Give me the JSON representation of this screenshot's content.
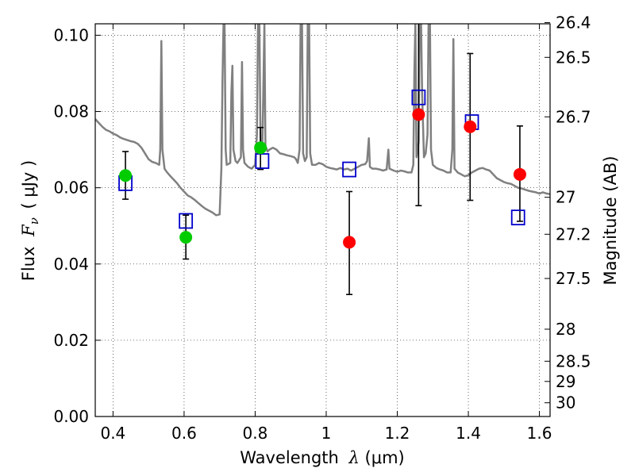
{
  "chart_data": {
    "type": "scatter",
    "title": "",
    "xlabel_prefix": "Wavelength",
    "xlabel_symbol": "λ",
    "xlabel_unit": "(μm)",
    "ylabel_prefix": "Flux",
    "ylabel_symbol": "F",
    "ylabel_sub": "ν",
    "ylabel_unit": "( μJy )",
    "y2label": "Magnitude (AB)",
    "xlim": [
      0.35,
      1.63
    ],
    "ylim": [
      0.0,
      0.103
    ],
    "grid": true,
    "legend": "none",
    "xticks": [
      0.4,
      0.6,
      0.8,
      1.0,
      1.2,
      1.4,
      1.6
    ],
    "xtick_labels": [
      "0.4",
      "0.6",
      "0.8",
      "1",
      "1.2",
      "1.4",
      "1.6"
    ],
    "yticks": [
      0.0,
      0.02,
      0.04,
      0.06,
      0.08,
      0.1
    ],
    "ytick_labels": [
      "0.00",
      "0.02",
      "0.04",
      "0.06",
      "0.08",
      "0.10"
    ],
    "mag_ticks": [
      {
        "flux": 0.1033,
        "label": "26.4"
      },
      {
        "flux": 0.0942,
        "label": "26.5"
      },
      {
        "flux": 0.0786,
        "label": "26.7"
      },
      {
        "flux": 0.0575,
        "label": "27"
      },
      {
        "flux": 0.0478,
        "label": "27.2"
      },
      {
        "flux": 0.0362,
        "label": "27.5"
      },
      {
        "flux": 0.0229,
        "label": "28"
      },
      {
        "flux": 0.0145,
        "label": "28.5"
      },
      {
        "flux": 0.0092,
        "label": "29"
      },
      {
        "flux": 0.0036,
        "label": "30"
      }
    ],
    "spectrum": {
      "color": "#808080",
      "points": [
        [
          0.35,
          0.078
        ],
        [
          0.36,
          0.077
        ],
        [
          0.37,
          0.076
        ],
        [
          0.38,
          0.0752
        ],
        [
          0.39,
          0.0748
        ],
        [
          0.4,
          0.0742
        ],
        [
          0.41,
          0.0738
        ],
        [
          0.42,
          0.0732
        ],
        [
          0.43,
          0.0728
        ],
        [
          0.44,
          0.0725
        ],
        [
          0.45,
          0.0722
        ],
        [
          0.46,
          0.072
        ],
        [
          0.47,
          0.0715
        ],
        [
          0.48,
          0.0705
        ],
        [
          0.49,
          0.069
        ],
        [
          0.5,
          0.0675
        ],
        [
          0.51,
          0.0668
        ],
        [
          0.52,
          0.0665
        ],
        [
          0.53,
          0.066
        ],
        [
          0.533,
          0.07
        ],
        [
          0.536,
          0.0985
        ],
        [
          0.539,
          0.07
        ],
        [
          0.545,
          0.065
        ],
        [
          0.55,
          0.0643
        ],
        [
          0.56,
          0.0632
        ],
        [
          0.57,
          0.0622
        ],
        [
          0.58,
          0.0612
        ],
        [
          0.59,
          0.06
        ],
        [
          0.6,
          0.059
        ],
        [
          0.61,
          0.058
        ],
        [
          0.62,
          0.0575
        ],
        [
          0.63,
          0.0568
        ],
        [
          0.64,
          0.056
        ],
        [
          0.65,
          0.0552
        ],
        [
          0.66,
          0.0545
        ],
        [
          0.67,
          0.054
        ],
        [
          0.68,
          0.0535
        ],
        [
          0.69,
          0.0528
        ],
        [
          0.7,
          0.053
        ],
        [
          0.705,
          0.065
        ],
        [
          0.708,
          0.088
        ],
        [
          0.711,
          0.103
        ],
        [
          0.714,
          0.103
        ],
        [
          0.717,
          0.07
        ],
        [
          0.72,
          0.066
        ],
        [
          0.73,
          0.0665
        ],
        [
          0.733,
          0.085
        ],
        [
          0.736,
          0.092
        ],
        [
          0.739,
          0.07
        ],
        [
          0.745,
          0.067
        ],
        [
          0.75,
          0.0665
        ],
        [
          0.76,
          0.068
        ],
        [
          0.763,
          0.093
        ],
        [
          0.766,
          0.07
        ],
        [
          0.77,
          0.0665
        ],
        [
          0.78,
          0.0655
        ],
        [
          0.79,
          0.065
        ],
        [
          0.8,
          0.066
        ],
        [
          0.805,
          0.074
        ],
        [
          0.808,
          0.103
        ],
        [
          0.812,
          0.103
        ],
        [
          0.815,
          0.072
        ],
        [
          0.82,
          0.069
        ],
        [
          0.823,
          0.085
        ],
        [
          0.826,
          0.103
        ],
        [
          0.829,
          0.071
        ],
        [
          0.835,
          0.0695
        ],
        [
          0.84,
          0.07
        ],
        [
          0.85,
          0.0705
        ],
        [
          0.86,
          0.07
        ],
        [
          0.87,
          0.069
        ],
        [
          0.88,
          0.0688
        ],
        [
          0.89,
          0.0685
        ],
        [
          0.9,
          0.0683
        ],
        [
          0.91,
          0.068
        ],
        [
          0.915,
          0.0675
        ],
        [
          0.92,
          0.0665
        ],
        [
          0.925,
          0.07
        ],
        [
          0.928,
          0.103
        ],
        [
          0.932,
          0.103
        ],
        [
          0.935,
          0.069
        ],
        [
          0.94,
          0.067
        ],
        [
          0.945,
          0.068
        ],
        [
          0.948,
          0.103
        ],
        [
          0.952,
          0.103
        ],
        [
          0.955,
          0.069
        ],
        [
          0.96,
          0.066
        ],
        [
          0.97,
          0.066
        ],
        [
          0.98,
          0.0665
        ],
        [
          0.99,
          0.0662
        ],
        [
          1.0,
          0.0655
        ],
        [
          1.01,
          0.0652
        ],
        [
          1.02,
          0.065
        ],
        [
          1.03,
          0.0648
        ],
        [
          1.04,
          0.0652
        ],
        [
          1.05,
          0.0648
        ],
        [
          1.06,
          0.065
        ],
        [
          1.07,
          0.0645
        ],
        [
          1.08,
          0.065
        ],
        [
          1.09,
          0.0655
        ],
        [
          1.1,
          0.066
        ],
        [
          1.11,
          0.0662
        ],
        [
          1.115,
          0.067
        ],
        [
          1.12,
          0.073
        ],
        [
          1.123,
          0.0655
        ],
        [
          1.13,
          0.065
        ],
        [
          1.14,
          0.065
        ],
        [
          1.15,
          0.0648
        ],
        [
          1.16,
          0.0645
        ],
        [
          1.17,
          0.0648
        ],
        [
          1.175,
          0.07
        ],
        [
          1.178,
          0.065
        ],
        [
          1.19,
          0.0645
        ],
        [
          1.2,
          0.0642
        ],
        [
          1.21,
          0.0645
        ],
        [
          1.22,
          0.0643
        ],
        [
          1.23,
          0.064
        ],
        [
          1.24,
          0.064
        ],
        [
          1.245,
          0.066
        ],
        [
          1.248,
          0.09
        ],
        [
          1.251,
          0.103
        ],
        [
          1.254,
          0.068
        ],
        [
          1.26,
          0.072
        ],
        [
          1.263,
          0.103
        ],
        [
          1.267,
          0.103
        ],
        [
          1.27,
          0.085
        ],
        [
          1.275,
          0.068
        ],
        [
          1.28,
          0.069
        ],
        [
          1.285,
          0.074
        ],
        [
          1.288,
          0.103
        ],
        [
          1.292,
          0.103
        ],
        [
          1.295,
          0.07
        ],
        [
          1.3,
          0.066
        ],
        [
          1.31,
          0.0652
        ],
        [
          1.32,
          0.0648
        ],
        [
          1.33,
          0.0645
        ],
        [
          1.34,
          0.064
        ],
        [
          1.35,
          0.064
        ],
        [
          1.355,
          0.07
        ],
        [
          1.358,
          0.099
        ],
        [
          1.361,
          0.065
        ],
        [
          1.37,
          0.064
        ],
        [
          1.38,
          0.0635
        ],
        [
          1.39,
          0.063
        ],
        [
          1.4,
          0.0633
        ],
        [
          1.41,
          0.064
        ],
        [
          1.42,
          0.0645
        ],
        [
          1.43,
          0.065
        ],
        [
          1.44,
          0.0652
        ],
        [
          1.45,
          0.0648
        ],
        [
          1.46,
          0.0645
        ],
        [
          1.47,
          0.0635
        ],
        [
          1.48,
          0.0625
        ],
        [
          1.49,
          0.062
        ],
        [
          1.5,
          0.0615
        ],
        [
          1.51,
          0.0612
        ],
        [
          1.52,
          0.061
        ],
        [
          1.53,
          0.0605
        ],
        [
          1.54,
          0.06
        ],
        [
          1.55,
          0.0598
        ],
        [
          1.56,
          0.0595
        ],
        [
          1.57,
          0.0592
        ],
        [
          1.58,
          0.059
        ],
        [
          1.59,
          0.0588
        ],
        [
          1.6,
          0.0585
        ],
        [
          1.61,
          0.0588
        ],
        [
          1.62,
          0.0585
        ],
        [
          1.63,
          0.0583
        ]
      ]
    },
    "series": [
      {
        "marker": "open-square",
        "color": "#0000cc",
        "points": [
          {
            "x": 0.435,
            "y": 0.0612
          },
          {
            "x": 0.605,
            "y": 0.0513
          },
          {
            "x": 0.82,
            "y": 0.067
          },
          {
            "x": 1.065,
            "y": 0.0648
          },
          {
            "x": 1.26,
            "y": 0.0837
          },
          {
            "x": 1.41,
            "y": 0.0772
          },
          {
            "x": 1.54,
            "y": 0.0522
          }
        ]
      },
      {
        "marker": "filled-circle",
        "color": "#00cc00",
        "points": [
          {
            "x": 0.435,
            "y": 0.0632,
            "err": [
              0.057,
              0.0695
            ]
          },
          {
            "x": 0.605,
            "y": 0.047,
            "err": [
              0.0413,
              0.0528
            ]
          },
          {
            "x": 0.815,
            "y": 0.0705,
            "err": [
              0.0648,
              0.0758
            ]
          }
        ]
      },
      {
        "marker": "filled-circle",
        "color": "#ff0000",
        "points": [
          {
            "x": 1.065,
            "y": 0.0457,
            "err": [
              0.032,
              0.059
            ]
          },
          {
            "x": 1.26,
            "y": 0.0792,
            "err": [
              0.0553,
              0.1033
            ]
          },
          {
            "x": 1.405,
            "y": 0.076,
            "err": [
              0.0567,
              0.0952
            ]
          },
          {
            "x": 1.545,
            "y": 0.0635,
            "err": [
              0.0512,
              0.0762
            ]
          }
        ]
      }
    ]
  }
}
